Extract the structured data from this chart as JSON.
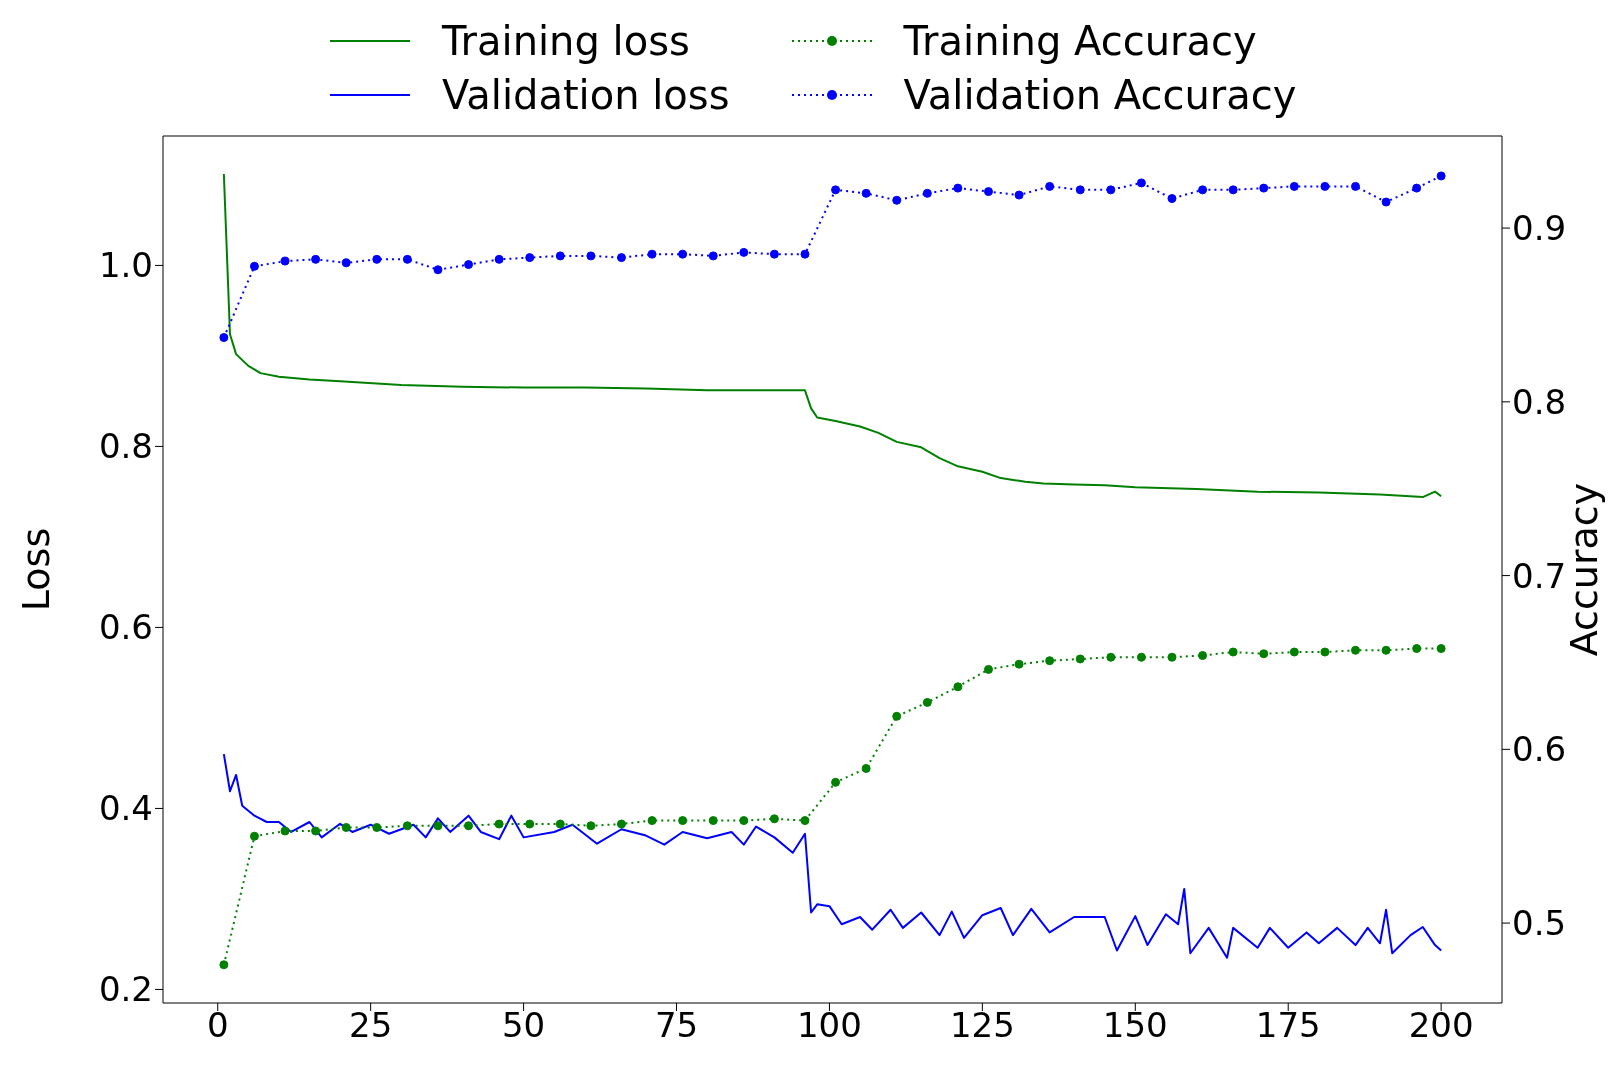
{
  "chart_data": {
    "type": "line",
    "xlabel": null,
    "ylabel": "Loss",
    "y2label": "Accuracy",
    "xlim": [
      -8.95,
      209.95
    ],
    "xticks": [
      0,
      25,
      50,
      75,
      100,
      125,
      150,
      175,
      200
    ],
    "ylim": [
      0.185,
      1.143
    ],
    "yticks": [
      {
        "value": 0.2,
        "label": "0.2"
      },
      {
        "value": 0.4,
        "label": "0.4"
      },
      {
        "value": 0.6,
        "label": "0.6"
      },
      {
        "value": 0.8,
        "label": "0.8"
      },
      {
        "value": 1.0,
        "label": "1.0"
      }
    ],
    "y2lim": [
      0.454,
      0.953
    ],
    "y2ticks": [
      0.5,
      0.6,
      0.7,
      0.8,
      0.9
    ],
    "legend": "top",
    "series": [
      {
        "name": "Training loss",
        "color": "#008000",
        "line_style": "solid",
        "marker": "none",
        "x": [
          1,
          2,
          3,
          5,
          7,
          10,
          15,
          20,
          30,
          40,
          50,
          60,
          70,
          80,
          90,
          96,
          97,
          98,
          101,
          105,
          108,
          111,
          115,
          118,
          121,
          125,
          128,
          132,
          135,
          140,
          145,
          150,
          160,
          170,
          180,
          190,
          197,
          199,
          200
        ],
        "values": [
          1.101,
          0.924,
          0.902,
          0.889,
          0.881,
          0.877,
          0.874,
          0.872,
          0.868,
          0.866,
          0.865,
          0.865,
          0.864,
          0.862,
          0.862,
          0.862,
          0.842,
          0.832,
          0.828,
          0.822,
          0.815,
          0.805,
          0.799,
          0.787,
          0.778,
          0.772,
          0.765,
          0.761,
          0.759,
          0.758,
          0.757,
          0.755,
          0.753,
          0.75,
          0.749,
          0.747,
          0.744,
          0.75,
          0.745
        ]
      },
      {
        "name": "Validation loss",
        "color": "#0000ff",
        "line_style": "solid",
        "marker": "none",
        "x": [
          1,
          2,
          3,
          4,
          6,
          8,
          10,
          12,
          15,
          17,
          20,
          22,
          25,
          28,
          32,
          34,
          36,
          38,
          41,
          43,
          46,
          48,
          50,
          55,
          58,
          62,
          66,
          70,
          73,
          76,
          80,
          84,
          86,
          88,
          91,
          94,
          96,
          97,
          98,
          100,
          102,
          105,
          107,
          110,
          112,
          115,
          118,
          120,
          122,
          125,
          128,
          130,
          133,
          136,
          140,
          145,
          147,
          150,
          152,
          155,
          157,
          158,
          159,
          162,
          165,
          166,
          170,
          172,
          175,
          178,
          180,
          183,
          186,
          188,
          190,
          191,
          192,
          195,
          197,
          199,
          200
        ],
        "values": [
          0.46,
          0.419,
          0.437,
          0.403,
          0.392,
          0.385,
          0.385,
          0.374,
          0.385,
          0.368,
          0.383,
          0.374,
          0.382,
          0.372,
          0.382,
          0.368,
          0.389,
          0.374,
          0.392,
          0.374,
          0.366,
          0.392,
          0.368,
          0.374,
          0.382,
          0.361,
          0.377,
          0.37,
          0.36,
          0.374,
          0.367,
          0.374,
          0.36,
          0.38,
          0.368,
          0.351,
          0.372,
          0.285,
          0.294,
          0.292,
          0.272,
          0.28,
          0.266,
          0.288,
          0.268,
          0.285,
          0.26,
          0.286,
          0.257,
          0.282,
          0.29,
          0.26,
          0.289,
          0.263,
          0.28,
          0.28,
          0.243,
          0.281,
          0.249,
          0.283,
          0.272,
          0.311,
          0.24,
          0.268,
          0.235,
          0.268,
          0.246,
          0.268,
          0.246,
          0.263,
          0.251,
          0.268,
          0.249,
          0.268,
          0.251,
          0.288,
          0.24,
          0.26,
          0.269,
          0.249,
          0.243
        ]
      },
      {
        "name": "Training Accuracy",
        "color": "#008000",
        "line_style": "dotted",
        "marker": "circle",
        "axis": "y2",
        "x": [
          1,
          6,
          11,
          16,
          21,
          26,
          31,
          36,
          41,
          46,
          51,
          56,
          61,
          66,
          71,
          76,
          81,
          86,
          91,
          96,
          101,
          106,
          111,
          116,
          121,
          126,
          131,
          136,
          141,
          146,
          151,
          156,
          161,
          166,
          171,
          176,
          181,
          186,
          191,
          196,
          200
        ],
        "values": [
          0.476,
          0.55,
          0.553,
          0.553,
          0.555,
          0.555,
          0.556,
          0.556,
          0.556,
          0.557,
          0.557,
          0.557,
          0.556,
          0.557,
          0.559,
          0.559,
          0.559,
          0.559,
          0.56,
          0.559,
          0.581,
          0.589,
          0.619,
          0.627,
          0.636,
          0.646,
          0.649,
          0.651,
          0.652,
          0.653,
          0.653,
          0.653,
          0.654,
          0.656,
          0.655,
          0.656,
          0.656,
          0.657,
          0.657,
          0.658,
          0.658
        ]
      },
      {
        "name": "Validation Accuracy",
        "color": "#0000ff",
        "line_style": "dotted",
        "marker": "circle",
        "axis": "y2",
        "x": [
          1,
          6,
          11,
          16,
          21,
          26,
          31,
          36,
          41,
          46,
          51,
          56,
          61,
          66,
          71,
          76,
          81,
          86,
          91,
          96,
          101,
          106,
          111,
          116,
          121,
          126,
          131,
          136,
          141,
          146,
          151,
          156,
          161,
          166,
          171,
          176,
          181,
          186,
          191,
          196,
          200
        ],
        "values": [
          0.837,
          0.878,
          0.881,
          0.882,
          0.88,
          0.882,
          0.882,
          0.876,
          0.879,
          0.882,
          0.883,
          0.884,
          0.884,
          0.883,
          0.885,
          0.885,
          0.884,
          0.886,
          0.885,
          0.885,
          0.922,
          0.92,
          0.916,
          0.92,
          0.923,
          0.921,
          0.919,
          0.924,
          0.922,
          0.922,
          0.926,
          0.917,
          0.922,
          0.922,
          0.923,
          0.924,
          0.924,
          0.924,
          0.915,
          0.923,
          0.93
        ]
      }
    ]
  }
}
